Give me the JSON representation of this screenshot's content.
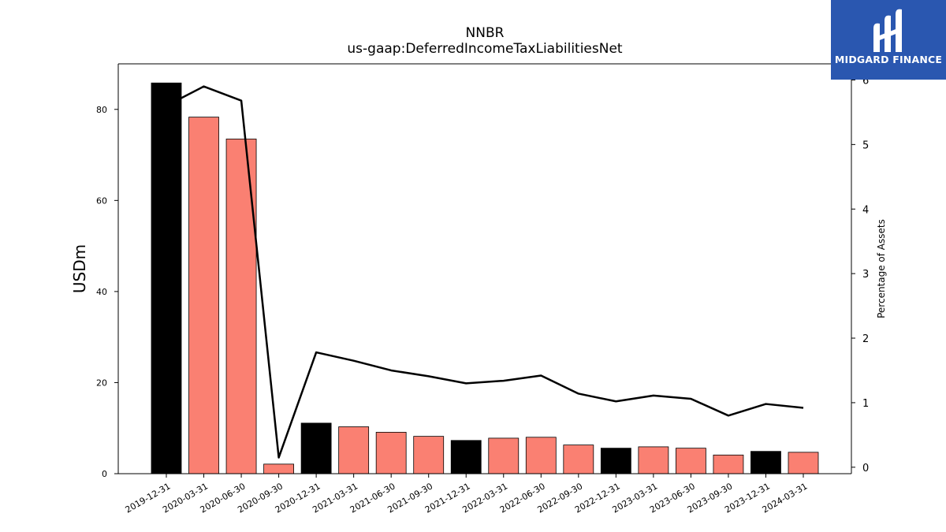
{
  "chart_data": {
    "type": "bar",
    "title": "NNBR",
    "subtitle": "us-gaap:DeferredIncomeTaxLiabilitiesNet",
    "ylabel": "USDm",
    "y2label": "Percentage of Assets",
    "ylim": [
      0,
      90
    ],
    "y2lim": [
      -0.1,
      6.25
    ],
    "yticks": [
      0,
      20,
      40,
      60,
      80
    ],
    "y2ticks": [
      0,
      1,
      2,
      3,
      4,
      5,
      6
    ],
    "categories": [
      "2019-12-31",
      "2020-03-31",
      "2020-06-30",
      "2020-09-30",
      "2020-12-31",
      "2021-03-31",
      "2021-06-30",
      "2021-09-30",
      "2021-12-31",
      "2022-03-31",
      "2022-06-30",
      "2022-09-30",
      "2022-12-31",
      "2023-03-31",
      "2023-06-30",
      "2023-09-30",
      "2023-12-31",
      "2024-03-31"
    ],
    "series": [
      {
        "type": "bar",
        "values": [
          85.8,
          78.3,
          73.5,
          2.1,
          11.1,
          10.3,
          9.1,
          8.2,
          7.3,
          7.8,
          8.0,
          6.3,
          5.6,
          5.9,
          5.6,
          4.1,
          4.9,
          4.7
        ],
        "colors": [
          "#000000",
          "#fa8072",
          "#fa8072",
          "#fa8072",
          "#000000",
          "#fa8072",
          "#fa8072",
          "#fa8072",
          "#000000",
          "#fa8072",
          "#fa8072",
          "#fa8072",
          "#000000",
          "#fa8072",
          "#fa8072",
          "#fa8072",
          "#000000",
          "#fa8072"
        ]
      },
      {
        "type": "line",
        "axis": "right",
        "color": "#000000",
        "values": [
          5.6,
          5.9,
          5.68,
          0.15,
          1.78,
          1.65,
          1.5,
          1.41,
          1.3,
          1.34,
          1.42,
          1.14,
          1.02,
          1.11,
          1.06,
          0.8,
          0.98,
          0.92
        ]
      }
    ]
  },
  "logo": {
    "text": "MIDGARD FINANCE",
    "bg": "#2a57b0"
  }
}
